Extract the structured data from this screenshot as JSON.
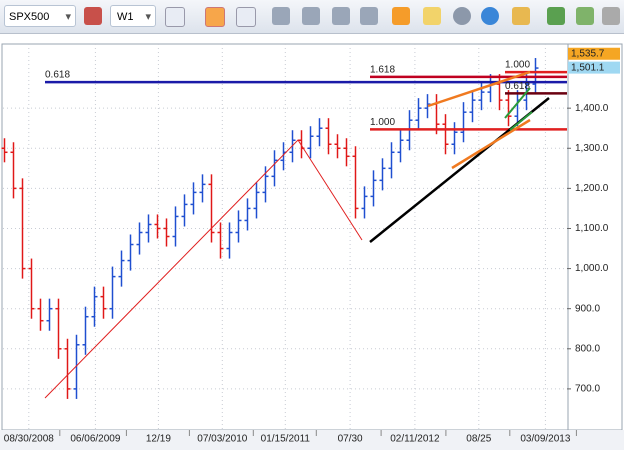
{
  "toolbar": {
    "symbol": "SPX500",
    "timeframe": "W1"
  },
  "chart_data": {
    "type": "ohlc",
    "open": [
      1300,
      1290,
      1200,
      1000,
      900,
      870,
      900,
      800,
      700,
      810,
      880,
      930,
      900,
      980,
      1020,
      1060,
      1090,
      1110,
      1100,
      1080,
      1130,
      1160,
      1190,
      1210,
      1090,
      1050,
      1090,
      1120,
      1150,
      1190,
      1230,
      1270,
      1290,
      1320,
      1300,
      1330,
      1350,
      1310,
      1300,
      1280,
      1150,
      1180,
      1220,
      1250,
      1290,
      1320,
      1370,
      1400,
      1410,
      1360,
      1310,
      1340,
      1390,
      1420,
      1440,
      1460,
      1420,
      1380,
      1420,
      1460
    ],
    "high": [
      1325,
      1315,
      1225,
      1025,
      925,
      925,
      925,
      825,
      835,
      905,
      955,
      955,
      1005,
      1045,
      1085,
      1115,
      1135,
      1135,
      1125,
      1155,
      1185,
      1215,
      1235,
      1235,
      1115,
      1115,
      1145,
      1175,
      1215,
      1255,
      1295,
      1315,
      1345,
      1345,
      1355,
      1375,
      1375,
      1335,
      1325,
      1305,
      1205,
      1245,
      1275,
      1315,
      1345,
      1395,
      1425,
      1435,
      1435,
      1385,
      1365,
      1415,
      1445,
      1465,
      1485,
      1485,
      1445,
      1445,
      1485,
      1525
    ],
    "low": [
      1265,
      1175,
      975,
      875,
      845,
      845,
      775,
      675,
      675,
      785,
      855,
      875,
      875,
      955,
      995,
      1035,
      1065,
      1075,
      1055,
      1055,
      1105,
      1135,
      1165,
      1065,
      1025,
      1025,
      1065,
      1095,
      1125,
      1165,
      1205,
      1245,
      1265,
      1275,
      1275,
      1305,
      1285,
      1275,
      1255,
      1125,
      1125,
      1155,
      1195,
      1225,
      1265,
      1295,
      1345,
      1375,
      1335,
      1285,
      1285,
      1315,
      1365,
      1395,
      1415,
      1395,
      1355,
      1355,
      1395,
      1435
    ],
    "close": [
      1290,
      1200,
      1000,
      900,
      870,
      900,
      800,
      700,
      810,
      880,
      930,
      900,
      980,
      1020,
      1060,
      1090,
      1110,
      1100,
      1080,
      1130,
      1160,
      1190,
      1210,
      1090,
      1050,
      1090,
      1120,
      1150,
      1190,
      1230,
      1270,
      1290,
      1320,
      1300,
      1330,
      1350,
      1310,
      1300,
      1280,
      1150,
      1180,
      1220,
      1250,
      1290,
      1320,
      1370,
      1400,
      1410,
      1360,
      1310,
      1340,
      1390,
      1420,
      1440,
      1460,
      1420,
      1380,
      1420,
      1460,
      1500
    ],
    "up_color": "#1f4fd0",
    "down_color": "#e01818",
    "xlim": [
      -0.5,
      62.5
    ],
    "xticks": [
      {
        "value": 2.7,
        "label": "08/30/2008"
      },
      {
        "value": 10.1,
        "label": "06/06/2009"
      },
      {
        "value": 17.1,
        "label": "12/19"
      },
      {
        "value": 24.2,
        "label": "07/03/2010"
      },
      {
        "value": 31.2,
        "label": "01/15/2011"
      },
      {
        "value": 38.4,
        "label": "07/30"
      },
      {
        "value": 45.6,
        "label": "02/11/2012"
      },
      {
        "value": 52.7,
        "label": "08/25"
      },
      {
        "value": 60.1,
        "label": "03/09/2013"
      }
    ],
    "ylim": [
      602.5,
      1560
    ],
    "yticks": [
      {
        "value": 700,
        "label": "700.0"
      },
      {
        "value": 800,
        "label": "800.0"
      },
      {
        "value": 900,
        "label": "900.0"
      },
      {
        "value": 1000,
        "label": "1,000.0"
      },
      {
        "value": 1100,
        "label": "1,100.0"
      },
      {
        "value": 1200,
        "label": "1,200.0"
      },
      {
        "value": 1300,
        "label": "1,300.0"
      },
      {
        "value": 1400,
        "label": "1,400.0"
      }
    ],
    "grid": true,
    "fib_levels": [
      {
        "label": "0.618",
        "value": 1465,
        "color": "#1a1aa8"
      },
      {
        "label": "1.618",
        "value": 1478,
        "color": "#c00020"
      },
      {
        "label": "1.000",
        "value": 1347,
        "color": "#e02020"
      },
      {
        "label": "0.618",
        "value": 1437,
        "color": "#6a0010"
      },
      {
        "label": "1.000",
        "value": 1490,
        "color": "#e02020"
      }
    ],
    "price_tags": [
      {
        "value": 1535.7,
        "label": "1,535.7",
        "color": "#f5a623"
      },
      {
        "value": 1501.1,
        "label": "1,501.1",
        "color": "#9fd8f2"
      }
    ]
  }
}
